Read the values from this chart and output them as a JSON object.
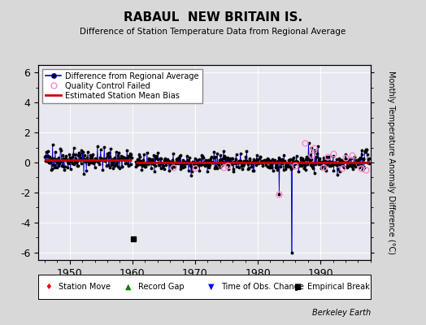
{
  "title": "RABAUL  NEW BRITAIN IS.",
  "subtitle": "Difference of Station Temperature Data from Regional Average",
  "ylabel": "Monthly Temperature Anomaly Difference (°C)",
  "xlim": [
    1945,
    1998
  ],
  "ylim": [
    -6.5,
    6.5
  ],
  "yticks": [
    -6,
    -4,
    -2,
    0,
    2,
    4,
    6
  ],
  "xticks": [
    1950,
    1960,
    1970,
    1980,
    1990
  ],
  "bg_color": "#d8d8d8",
  "plot_bg_color": "#e8e8f0",
  "line_color": "#0000cc",
  "marker_color": "#000000",
  "qc_color": "#ff88cc",
  "bias_color": "#cc0000",
  "vertical_line_x": 1985.5,
  "empirical_break_x": 1960.2,
  "empirical_break_y": -5.1,
  "seed": 42,
  "segment1_start": 1946.0,
  "segment1_end": 1959.9,
  "segment1_bias": 0.18,
  "segment1_amplitude": 0.35,
  "segment2_start": 1960.5,
  "segment2_end": 1997.8,
  "segment2_bias": 0.0,
  "segment2_amplitude": 0.28,
  "spike1_x": 1983.4,
  "spike1_y": -2.1,
  "spike2_x": 1985.4,
  "spike2_y": -6.0
}
